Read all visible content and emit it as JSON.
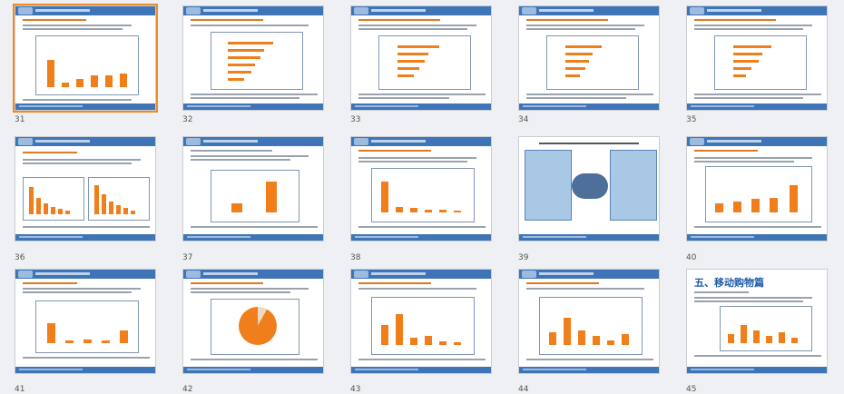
{
  "slides": [
    {
      "number": "31",
      "selected": true
    },
    {
      "number": "32",
      "selected": false
    },
    {
      "number": "33",
      "selected": false
    },
    {
      "number": "34",
      "selected": false
    },
    {
      "number": "35",
      "selected": false
    },
    {
      "number": "36",
      "selected": false
    },
    {
      "number": "37",
      "selected": false
    },
    {
      "number": "38",
      "selected": false
    },
    {
      "number": "39",
      "selected": false
    },
    {
      "number": "40",
      "selected": false
    },
    {
      "number": "41",
      "selected": false
    },
    {
      "number": "42",
      "selected": false
    },
    {
      "number": "43",
      "selected": false
    },
    {
      "number": "44",
      "selected": false
    },
    {
      "number": "45",
      "selected": false
    }
  ],
  "slide45": {
    "section_title": "五、移动购物篇"
  },
  "colors": {
    "accent_orange": "#f07f1b",
    "header_blue": "#3f75b6",
    "selection": "#f08a24"
  }
}
